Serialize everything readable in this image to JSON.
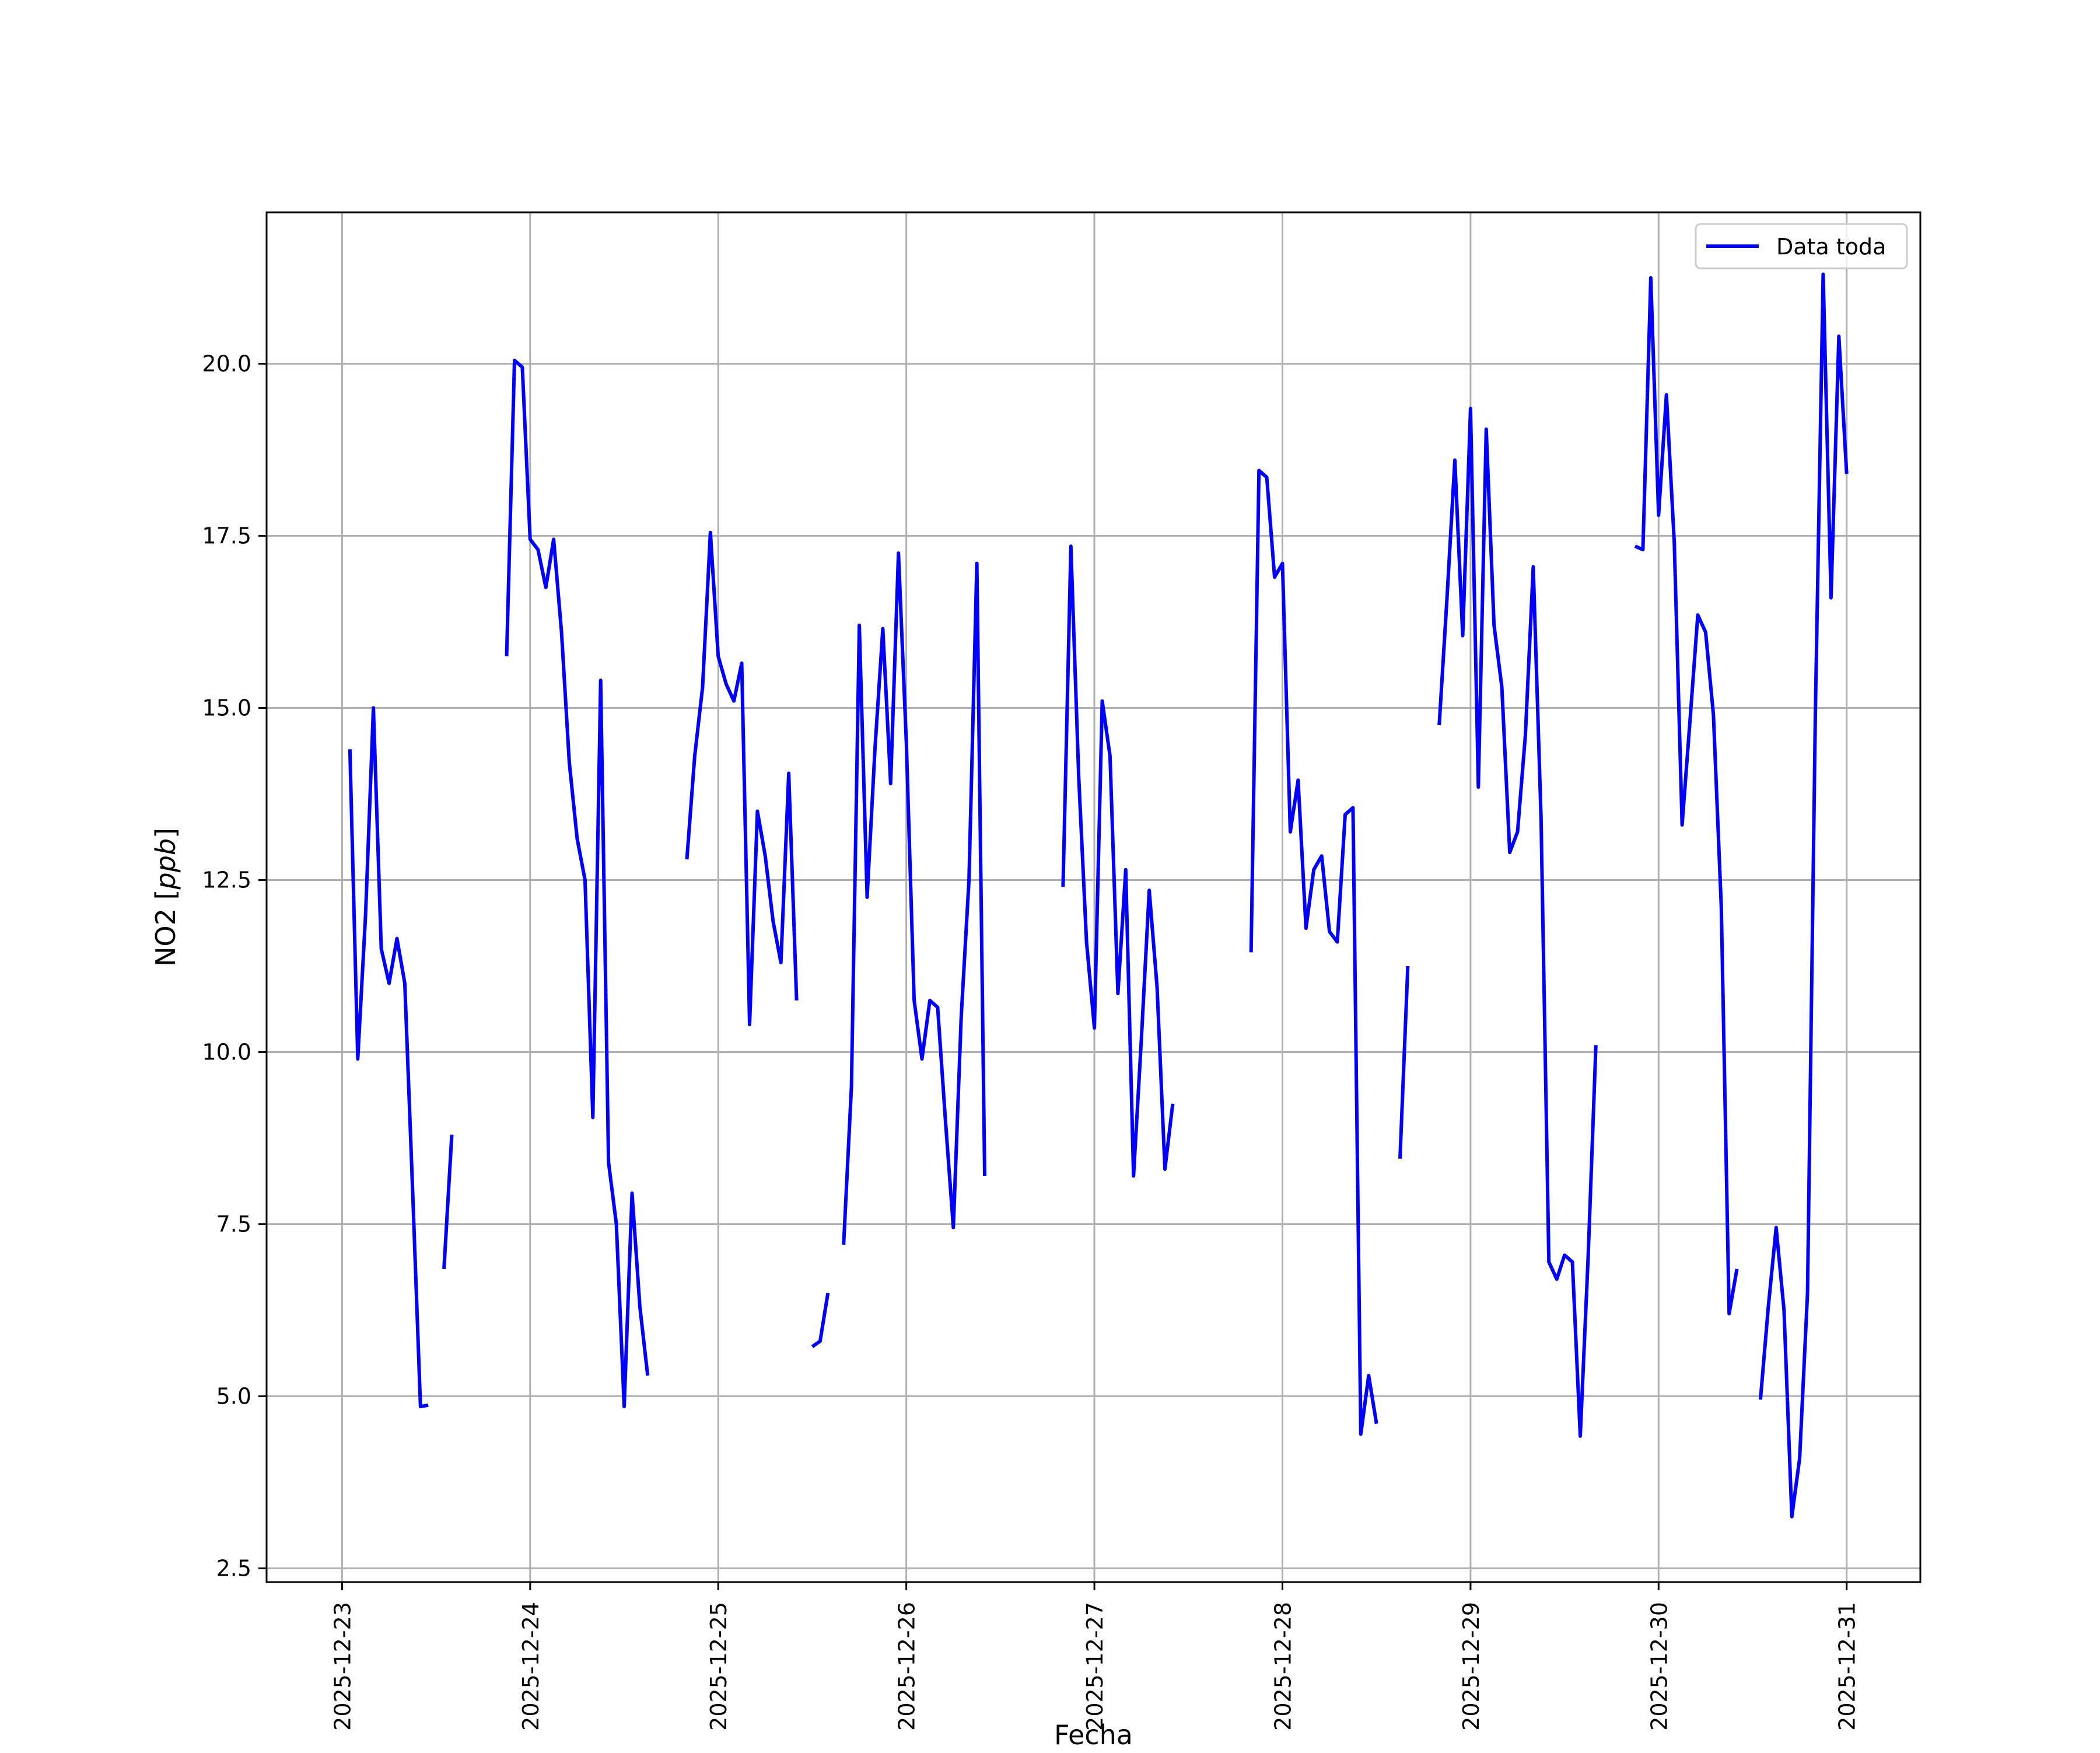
{
  "chart_data": {
    "type": "line",
    "title": "",
    "xlabel": "Fecha",
    "ylabel": "NO2 [ppb]",
    "ylabel_parts": {
      "plain": "NO2 [",
      "italic": "ppb",
      "close": "]"
    },
    "xlim": [
      "2025-12-22 14:22",
      "2025-12-31 09:24"
    ],
    "ylim": [
      2.3,
      22.2
    ],
    "x_ticks": [
      "2025-12-23",
      "2025-12-24",
      "2025-12-25",
      "2025-12-26",
      "2025-12-27",
      "2025-12-28",
      "2025-12-29",
      "2025-12-30",
      "2025-12-31"
    ],
    "y_ticks": [
      2.5,
      5.0,
      7.5,
      10.0,
      12.5,
      15.0,
      17.5,
      20.0
    ],
    "y_tick_labels": [
      "2.5",
      "5.0",
      "7.5",
      "10.0",
      "12.5",
      "15.0",
      "17.5",
      "20.0"
    ],
    "grid": true,
    "legend_position": "top-right",
    "series": [
      {
        "name": "Data toda",
        "color": "#0000ff",
        "segments": [
          [
            [
              "2025-12-23 01:00",
              14.4
            ],
            [
              "2025-12-23 02:00",
              9.9
            ],
            [
              "2025-12-23 03:00",
              12.0
            ],
            [
              "2025-12-23 04:00",
              15.0
            ],
            [
              "2025-12-23 05:00",
              11.5
            ],
            [
              "2025-12-23 06:00",
              11.0
            ],
            [
              "2025-12-23 07:00",
              11.65
            ],
            [
              "2025-12-23 08:00",
              11.0
            ],
            [
              "2025-12-23 09:00",
              8.0
            ],
            [
              "2025-12-23 10:00",
              4.85
            ],
            [
              "2025-12-23 11:00",
              4.87
            ]
          ],
          [
            [
              "2025-12-23 13:00",
              6.85
            ],
            [
              "2025-12-23 14:00",
              8.8
            ]
          ],
          [
            [
              "2025-12-23 21:00",
              15.75
            ],
            [
              "2025-12-23 22:00",
              20.05
            ],
            [
              "2025-12-23 23:00",
              19.95
            ],
            [
              "2025-12-24 00:00",
              17.45
            ],
            [
              "2025-12-24 01:00",
              17.3
            ],
            [
              "2025-12-24 02:00",
              16.75
            ],
            [
              "2025-12-24 03:00",
              17.45
            ],
            [
              "2025-12-24 04:00",
              16.1
            ],
            [
              "2025-12-24 05:00",
              14.2
            ],
            [
              "2025-12-24 06:00",
              13.1
            ],
            [
              "2025-12-24 07:00",
              12.5
            ],
            [
              "2025-12-24 08:00",
              9.05
            ],
            [
              "2025-12-24 09:00",
              15.4
            ],
            [
              "2025-12-24 10:00",
              8.4
            ],
            [
              "2025-12-24 11:00",
              7.5
            ],
            [
              "2025-12-24 12:00",
              4.85
            ],
            [
              "2025-12-24 13:00",
              7.95
            ],
            [
              "2025-12-24 14:00",
              6.3
            ],
            [
              "2025-12-24 15:00",
              5.3
            ]
          ],
          [
            [
              "2025-12-24 20:00",
              12.8
            ],
            [
              "2025-12-24 21:00",
              14.3
            ],
            [
              "2025-12-24 22:00",
              15.3
            ],
            [
              "2025-12-24 23:00",
              17.55
            ],
            [
              "2025-12-25 00:00",
              15.75
            ],
            [
              "2025-12-25 01:00",
              15.35
            ],
            [
              "2025-12-25 02:00",
              15.1
            ],
            [
              "2025-12-25 03:00",
              15.65
            ],
            [
              "2025-12-25 04:00",
              10.4
            ],
            [
              "2025-12-25 05:00",
              13.5
            ],
            [
              "2025-12-25 06:00",
              12.85
            ],
            [
              "2025-12-25 07:00",
              11.9
            ],
            [
              "2025-12-25 08:00",
              11.3
            ],
            [
              "2025-12-25 09:00",
              14.05
            ],
            [
              "2025-12-25 10:00",
              10.75
            ]
          ],
          [
            [
              "2025-12-25 12:00",
              5.72
            ],
            [
              "2025-12-25 13:00",
              5.8
            ],
            [
              "2025-12-25 14:00",
              6.5
            ]
          ],
          [
            [
              "2025-12-25 16:00",
              7.2
            ],
            [
              "2025-12-25 17:00",
              9.5
            ],
            [
              "2025-12-25 18:00",
              16.2
            ],
            [
              "2025-12-25 19:00",
              12.25
            ],
            [
              "2025-12-25 20:00",
              14.4
            ],
            [
              "2025-12-25 21:00",
              16.15
            ],
            [
              "2025-12-25 22:00",
              13.9
            ],
            [
              "2025-12-25 23:00",
              17.25
            ],
            [
              "2025-12-26 00:00",
              14.5
            ],
            [
              "2025-12-26 01:00",
              10.75
            ],
            [
              "2025-12-26 02:00",
              9.9
            ],
            [
              "2025-12-26 03:00",
              10.75
            ],
            [
              "2025-12-26 04:00",
              10.65
            ],
            [
              "2025-12-26 05:00",
              9.0
            ],
            [
              "2025-12-26 06:00",
              7.45
            ],
            [
              "2025-12-26 07:00",
              10.5
            ],
            [
              "2025-12-26 08:00",
              12.5
            ],
            [
              "2025-12-26 09:00",
              17.1
            ],
            [
              "2025-12-26 10:00",
              8.2
            ]
          ],
          [
            [
              "2025-12-26 20:00",
              12.4
            ],
            [
              "2025-12-26 21:00",
              17.35
            ],
            [
              "2025-12-26 22:00",
              14.0
            ],
            [
              "2025-12-26 23:00",
              11.6
            ],
            [
              "2025-12-27 00:00",
              10.35
            ],
            [
              "2025-12-27 01:00",
              15.1
            ],
            [
              "2025-12-27 02:00",
              14.3
            ],
            [
              "2025-12-27 03:00",
              10.85
            ],
            [
              "2025-12-27 04:00",
              12.65
            ],
            [
              "2025-12-27 05:00",
              8.2
            ],
            [
              "2025-12-27 06:00",
              10.2
            ],
            [
              "2025-12-27 07:00",
              12.35
            ],
            [
              "2025-12-27 08:00",
              10.95
            ],
            [
              "2025-12-27 09:00",
              8.3
            ],
            [
              "2025-12-27 10:00",
              9.25
            ]
          ],
          [
            [
              "2025-12-27 20:00",
              11.45
            ],
            [
              "2025-12-27 21:00",
              18.45
            ],
            [
              "2025-12-27 22:00",
              18.35
            ],
            [
              "2025-12-27 23:00",
              16.9
            ],
            [
              "2025-12-28 00:00",
              17.1
            ],
            [
              "2025-12-28 01:00",
              13.2
            ],
            [
              "2025-12-28 02:00",
              13.95
            ],
            [
              "2025-12-28 03:00",
              11.8
            ],
            [
              "2025-12-28 04:00",
              12.65
            ],
            [
              "2025-12-28 05:00",
              12.85
            ],
            [
              "2025-12-28 06:00",
              11.75
            ],
            [
              "2025-12-28 07:00",
              11.6
            ],
            [
              "2025-12-28 08:00",
              13.45
            ],
            [
              "2025-12-28 09:00",
              13.55
            ],
            [
              "2025-12-28 10:00",
              4.45
            ],
            [
              "2025-12-28 11:00",
              5.3
            ],
            [
              "2025-12-28 12:00",
              4.6
            ]
          ],
          [
            [
              "2025-12-28 15:00",
              8.45
            ],
            [
              "2025-12-28 16:00",
              11.25
            ]
          ],
          [
            [
              "2025-12-28 20:00",
              14.75
            ],
            [
              "2025-12-28 21:00",
              16.6
            ],
            [
              "2025-12-28 22:00",
              18.6
            ],
            [
              "2025-12-28 23:00",
              16.05
            ],
            [
              "2025-12-29 00:00",
              19.35
            ],
            [
              "2025-12-29 01:00",
              13.85
            ],
            [
              "2025-12-29 02:00",
              19.05
            ],
            [
              "2025-12-29 03:00",
              16.2
            ],
            [
              "2025-12-29 04:00",
              15.3
            ],
            [
              "2025-12-29 05:00",
              12.9
            ],
            [
              "2025-12-29 06:00",
              13.2
            ],
            [
              "2025-12-29 07:00",
              14.6
            ],
            [
              "2025-12-29 08:00",
              17.05
            ],
            [
              "2025-12-29 09:00",
              13.4
            ],
            [
              "2025-12-29 10:00",
              6.95
            ],
            [
              "2025-12-29 11:00",
              6.7
            ],
            [
              "2025-12-29 12:00",
              7.05
            ],
            [
              "2025-12-29 13:00",
              6.95
            ],
            [
              "2025-12-29 14:00",
              4.42
            ],
            [
              "2025-12-29 15:00",
              7.0
            ],
            [
              "2025-12-29 16:00",
              10.1
            ]
          ],
          [
            [
              "2025-12-29 21:00",
              17.35
            ],
            [
              "2025-12-29 22:00",
              17.3
            ],
            [
              "2025-12-29 23:00",
              21.25
            ],
            [
              "2025-12-30 00:00",
              17.8
            ],
            [
              "2025-12-30 01:00",
              19.55
            ],
            [
              "2025-12-30 02:00",
              17.4
            ],
            [
              "2025-12-30 03:00",
              13.3
            ],
            [
              "2025-12-30 04:00",
              14.8
            ],
            [
              "2025-12-30 05:00",
              16.35
            ],
            [
              "2025-12-30 06:00",
              16.1
            ],
            [
              "2025-12-30 07:00",
              14.9
            ],
            [
              "2025-12-30 08:00",
              12.1
            ],
            [
              "2025-12-30 09:00",
              6.2
            ],
            [
              "2025-12-30 10:00",
              6.85
            ]
          ],
          [
            [
              "2025-12-30 13:00",
              4.95
            ],
            [
              "2025-12-30 14:00",
              6.3
            ],
            [
              "2025-12-30 15:00",
              7.45
            ],
            [
              "2025-12-30 16:00",
              6.25
            ],
            [
              "2025-12-30 17:00",
              3.25
            ],
            [
              "2025-12-30 18:00",
              4.1
            ],
            [
              "2025-12-30 19:00",
              6.5
            ],
            [
              "2025-12-30 20:00",
              14.9
            ],
            [
              "2025-12-30 21:00",
              21.3
            ],
            [
              "2025-12-30 22:00",
              16.6
            ],
            [
              "2025-12-30 23:00",
              20.4
            ],
            [
              "2025-12-31 00:00",
              18.4
            ]
          ]
        ]
      }
    ]
  }
}
